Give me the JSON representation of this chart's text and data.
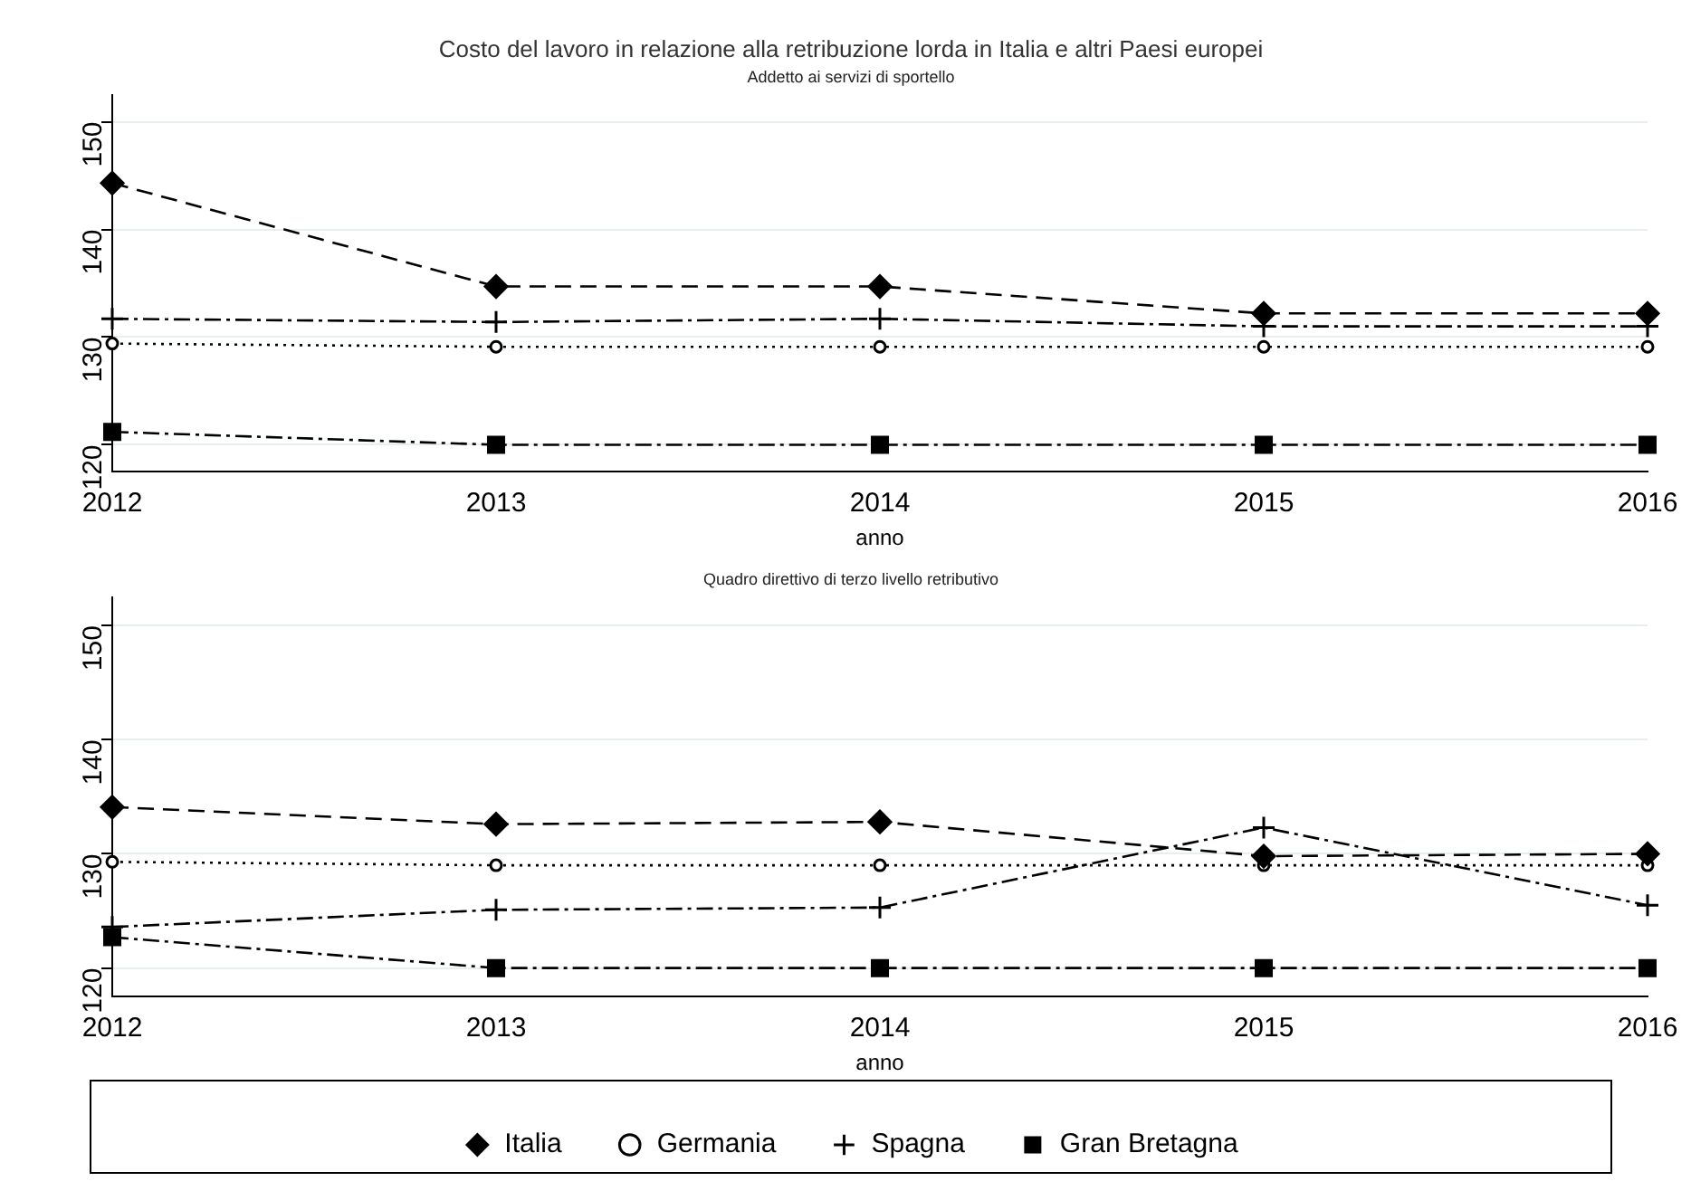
{
  "chart_data": [
    {
      "type": "line",
      "title": "Costo del lavoro in relazione alla retribuzione lorda in Italia e altri Paesi europei",
      "subtitle": "Addetto ai servizi di sportello",
      "xlabel": "anno",
      "categories": [
        "2012",
        "2013",
        "2014",
        "2015",
        "2016"
      ],
      "ylim": [
        117.5,
        152.5
      ],
      "yticks": [
        120,
        130,
        140,
        150
      ],
      "grid": "y",
      "legend": false,
      "series": [
        {
          "color": "#000000",
          "marker": "diamond",
          "line_style": "dashed",
          "values": [
            144.3,
            134.7,
            134.7,
            132.2,
            132.2
          ]
        },
        {
          "color": "#000000",
          "marker": "circle",
          "line_style": "dotted",
          "values": [
            129.4,
            129.1,
            129.1,
            129.1,
            129.1
          ]
        },
        {
          "color": "#000000",
          "marker": "cross",
          "line_style": "dashdot",
          "values": [
            131.7,
            131.4,
            131.7,
            131.0,
            131.0
          ]
        },
        {
          "color": "#000000",
          "marker": "square",
          "line_style": "dashdot",
          "values": [
            121.2,
            120.0,
            120.0,
            120.0,
            120.0
          ]
        }
      ]
    },
    {
      "type": "line",
      "subtitle": "Quadro direttivo di terzo livello retributivo",
      "xlabel": "anno",
      "categories": [
        "2012",
        "2013",
        "2014",
        "2015",
        "2016"
      ],
      "ylim": [
        117.5,
        152.5
      ],
      "yticks": [
        120,
        130,
        140,
        150
      ],
      "grid": "y",
      "legend": "bottom",
      "series": [
        {
          "name": "Italia",
          "color": "#000000",
          "marker": "diamond",
          "line_style": "dashed",
          "values": [
            134.1,
            132.6,
            132.8,
            129.8,
            130.0
          ]
        },
        {
          "name": "Germania",
          "color": "#000000",
          "marker": "circle",
          "line_style": "dotted",
          "values": [
            129.3,
            129.0,
            129.0,
            129.0,
            129.0
          ]
        },
        {
          "name": "Spagna",
          "color": "#000000",
          "marker": "cross",
          "line_style": "dashdot",
          "values": [
            123.6,
            125.1,
            125.3,
            132.3,
            125.5
          ]
        },
        {
          "name": "Gran Bretagna",
          "color": "#000000",
          "marker": "square",
          "line_style": "dashdot",
          "values": [
            122.7,
            120.0,
            120.0,
            120.0,
            120.0
          ]
        }
      ]
    }
  ]
}
